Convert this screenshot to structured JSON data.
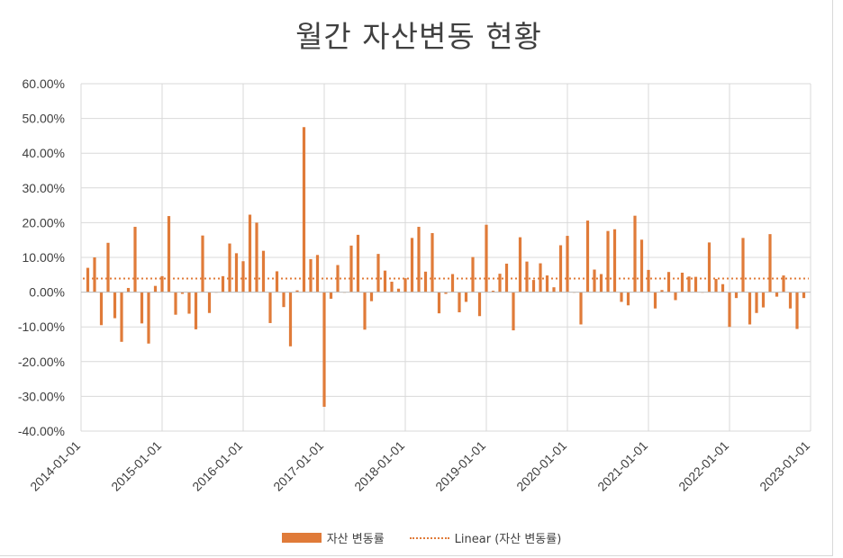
{
  "chart_data": {
    "type": "bar",
    "title": "월간 자산변동 현황",
    "series": [
      {
        "name": "자산 변동률",
        "color": "#e07b39",
        "x": [
          "2014-02",
          "2014-03",
          "2014-04",
          "2014-05",
          "2014-06",
          "2014-07",
          "2014-08",
          "2014-09",
          "2014-10",
          "2014-11",
          "2014-12",
          "2015-01",
          "2015-02",
          "2015-03",
          "2015-04",
          "2015-05",
          "2015-06",
          "2015-07",
          "2015-08",
          "2015-09",
          "2015-10",
          "2015-11",
          "2015-12",
          "2016-01",
          "2016-02",
          "2016-03",
          "2016-04",
          "2016-05",
          "2016-06",
          "2016-07",
          "2016-08",
          "2016-09",
          "2016-10",
          "2016-11",
          "2016-12",
          "2017-01",
          "2017-02",
          "2017-03",
          "2017-04",
          "2017-05",
          "2017-06",
          "2017-07",
          "2017-08",
          "2017-09",
          "2017-10",
          "2017-11",
          "2017-12",
          "2018-01",
          "2018-02",
          "2018-03",
          "2018-04",
          "2018-05",
          "2018-06",
          "2018-07",
          "2018-08",
          "2018-09",
          "2018-10",
          "2018-11",
          "2018-12",
          "2019-01",
          "2019-02",
          "2019-03",
          "2019-04",
          "2019-05",
          "2019-06",
          "2019-07",
          "2019-08",
          "2019-09",
          "2019-10",
          "2019-11",
          "2019-12",
          "2020-01",
          "2020-02",
          "2020-03",
          "2020-04",
          "2020-05",
          "2020-06",
          "2020-07",
          "2020-08",
          "2020-09",
          "2020-10",
          "2020-11",
          "2020-12",
          "2021-01",
          "2021-02",
          "2021-03",
          "2021-04",
          "2021-05",
          "2021-06",
          "2021-07",
          "2021-08",
          "2021-09",
          "2021-10",
          "2021-11",
          "2021-12",
          "2022-01",
          "2022-02",
          "2022-03",
          "2022-04",
          "2022-05",
          "2022-06",
          "2022-07",
          "2022-08",
          "2022-09",
          "2022-10",
          "2022-11",
          "2022-12"
        ],
        "values": [
          7.0,
          10.0,
          -9.5,
          14.2,
          -7.5,
          -14.3,
          1.2,
          18.8,
          -9.0,
          -14.8,
          1.8,
          4.6,
          21.9,
          -6.5,
          -0.5,
          -6.2,
          -10.7,
          16.3,
          -6.0,
          0.0,
          4.6,
          14.0,
          11.2,
          8.9,
          22.3,
          20.0,
          11.9,
          -8.9,
          6.0,
          -4.3,
          -15.6,
          0.5,
          47.5,
          9.5,
          10.7,
          -33.0,
          -1.9,
          7.8,
          0.0,
          13.4,
          16.5,
          -10.8,
          -2.6,
          11.0,
          6.2,
          3.0,
          1.0,
          4.0,
          15.6,
          18.8,
          5.9,
          17.0,
          -6.1,
          -0.5,
          5.2,
          -5.8,
          -2.8,
          10.1,
          -6.9,
          19.4,
          0.4,
          5.3,
          8.2,
          -11.0,
          15.8,
          8.8,
          3.5,
          8.3,
          4.8,
          1.4,
          13.5,
          16.2,
          0.0,
          -9.3,
          20.6,
          6.5,
          5.2,
          17.6,
          18.1,
          -2.8,
          -3.8,
          22.0,
          15.1,
          6.4,
          -4.7,
          0.6,
          5.8,
          -2.3,
          5.6,
          4.5,
          4.4,
          0.0,
          14.3,
          3.8,
          2.3,
          -10.0,
          -1.7,
          15.6,
          -9.3,
          -6.0,
          -4.4,
          16.7,
          -1.3,
          4.8,
          -4.7,
          -10.6,
          -1.7
        ]
      },
      {
        "name": "Linear (자산 변동률)",
        "type": "trendline",
        "values": [
          3.9,
          3.9
        ]
      }
    ],
    "ylim": [
      -40,
      60
    ],
    "yticks": [
      "60.00%",
      "50.00%",
      "40.00%",
      "30.00%",
      "20.00%",
      "10.00%",
      "0.00%",
      "-10.00%",
      "-20.00%",
      "-30.00%",
      "-40.00%"
    ],
    "xticks": [
      "2014-01-01",
      "2015-01-01",
      "2016-01-01",
      "2017-01-01",
      "2018-01-01",
      "2019-01-01",
      "2020-01-01",
      "2021-01-01",
      "2022-01-01",
      "2023-01-01"
    ],
    "grid": true,
    "legend": "bottom"
  },
  "legend": {
    "bar_label": "자산 변동률",
    "line_label": "Linear (자산 변동률)"
  }
}
